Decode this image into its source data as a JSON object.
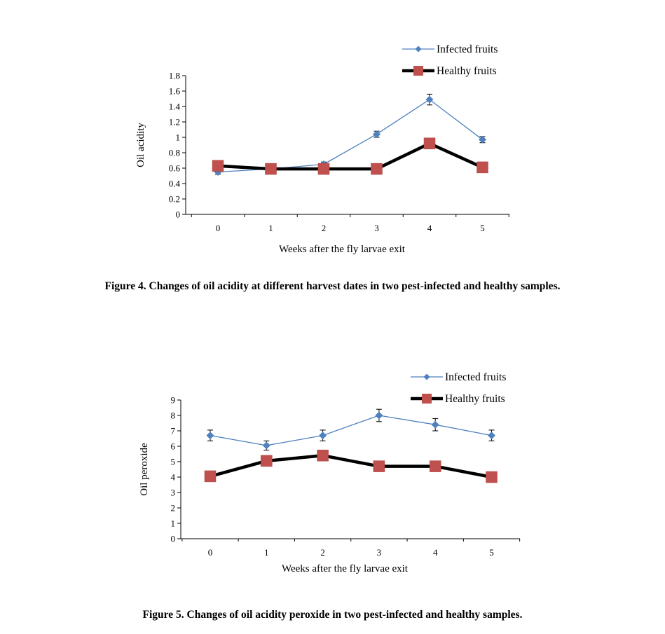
{
  "figures": [
    {
      "caption": "Figure 4. Changes of oil acidity at different harvest dates in two pest-infected and healthy samples.",
      "chart_data": {
        "type": "line",
        "x": [
          0,
          1,
          2,
          3,
          4,
          5
        ],
        "xlabel": "Weeks after the fly larvae exit",
        "ylabel": "Oil acidity",
        "ylim": [
          0,
          1.8
        ],
        "yticks": [
          0,
          0.2,
          0.4,
          0.6,
          0.8,
          1,
          1.2,
          1.4,
          1.6,
          1.8
        ],
        "ytick_labels": [
          "0",
          "0.2",
          "0.4",
          "0.6",
          "0.8",
          "1",
          "1.2",
          "1.4",
          "1.6",
          "1.8"
        ],
        "grid": false,
        "legend_position": "top-right",
        "series": [
          {
            "name": "Infected fruits",
            "values": [
              0.55,
              0.59,
              0.65,
              1.04,
              1.49,
              0.97
            ],
            "errors": [
              0.03,
              0.02,
              0.03,
              0.04,
              0.07,
              0.04
            ],
            "color": "#4f81bd",
            "marker": "diamond"
          },
          {
            "name": "Healthy fruits",
            "values": [
              0.63,
              0.59,
              0.59,
              0.59,
              0.92,
              0.61
            ],
            "errors": [
              0,
              0,
              0,
              0,
              0,
              0
            ],
            "color": "#000000",
            "marker_color": "#c0504d",
            "marker": "square"
          }
        ]
      }
    },
    {
      "caption": "Figure 5. Changes of oil acidity peroxide in two pest-infected and healthy samples.",
      "chart_data": {
        "type": "line",
        "x": [
          0,
          1,
          2,
          3,
          4,
          5
        ],
        "xlabel": "Weeks after the fly larvae exit",
        "ylabel": "Oil peroxide",
        "ylim": [
          0,
          9
        ],
        "yticks": [
          0,
          1,
          2,
          3,
          4,
          5,
          6,
          7,
          8,
          9
        ],
        "ytick_labels": [
          "0",
          "1",
          "2",
          "3",
          "4",
          "5",
          "6",
          "7",
          "8",
          "9"
        ],
        "grid": false,
        "legend_position": "top-right",
        "series": [
          {
            "name": "Infected fruits",
            "values": [
              6.7,
              6.05,
              6.7,
              8.0,
              7.4,
              6.7
            ],
            "errors": [
              0.35,
              0.3,
              0.35,
              0.4,
              0.4,
              0.35
            ],
            "color": "#4f81bd",
            "marker": "diamond"
          },
          {
            "name": "Healthy fruits",
            "values": [
              4.05,
              5.05,
              5.4,
              4.7,
              4.7,
              4.0
            ],
            "errors": [
              0,
              0,
              0,
              0,
              0,
              0
            ],
            "color": "#000000",
            "marker_color": "#c0504d",
            "marker": "square"
          }
        ]
      }
    }
  ]
}
